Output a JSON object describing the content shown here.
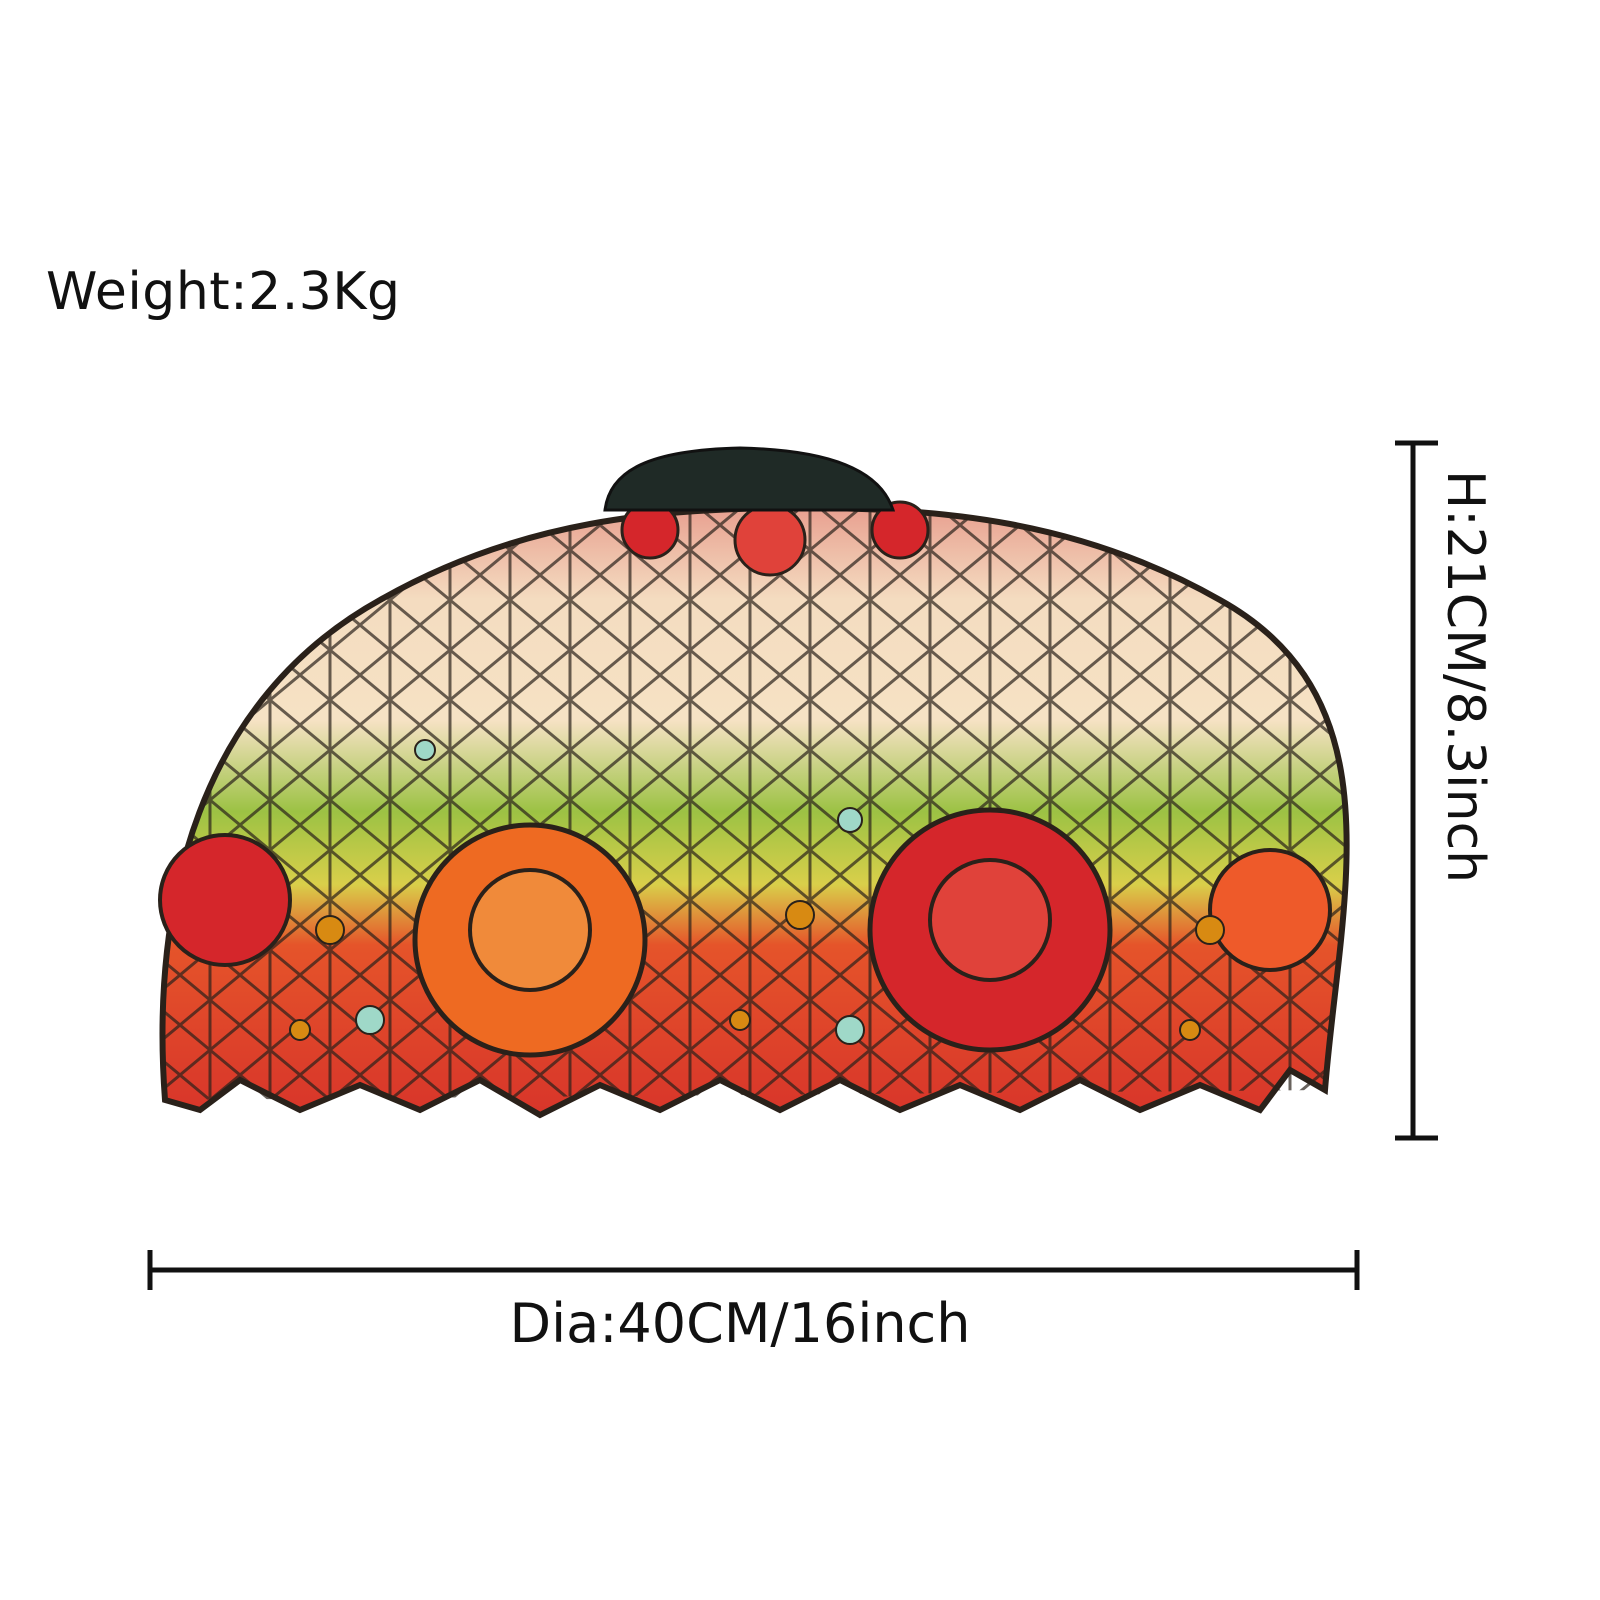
{
  "product": {
    "weight_label": "Weight:2.3Kg",
    "height_label": "H:21CM/8.3inch",
    "diameter_label": "Dia:40CM/16inch",
    "image_alt": "Stained glass rose lamp shade"
  },
  "colors": {
    "lead": "#2a211a",
    "rose_red": "#d5262b",
    "rose_orange": "#ee6a22",
    "leaf_green": "#8fbf3a",
    "cream": "#f6e2c4",
    "amber": "#d88a12"
  }
}
